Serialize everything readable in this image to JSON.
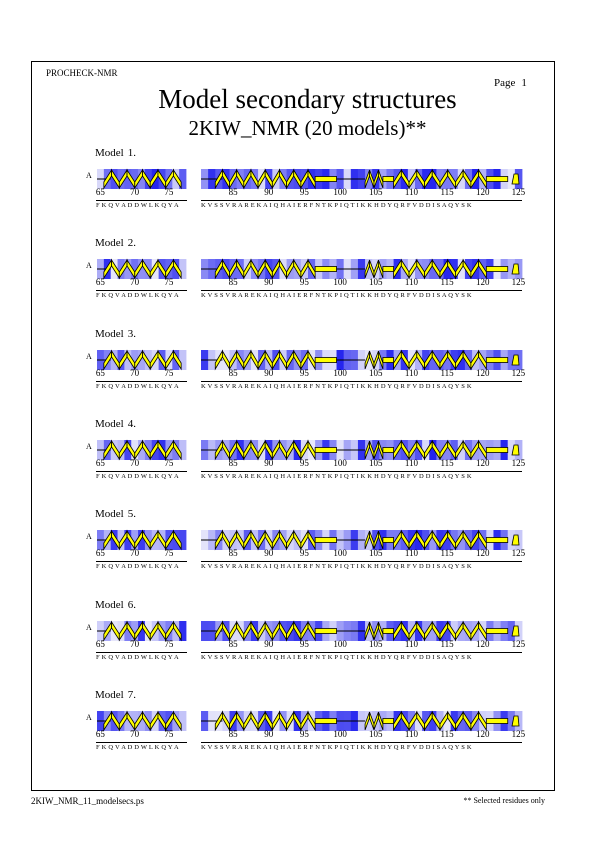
{
  "header": {
    "program": "PROCHECK-NMR",
    "page_label": "Page",
    "page_number": "1",
    "title": "Model secondary structures",
    "subtitle": "2KIW_NMR (20 models)**"
  },
  "footer": {
    "filename": "2KIW_NMR_11_modelsecs.ps",
    "note": "** Selected residues only"
  },
  "colors": {
    "helix_fill": "#ffff00",
    "helix_outline": "#000000",
    "accessibility_dark": "#2020ee",
    "accessibility_light": "#e8e8fa"
  },
  "chain_id": "A",
  "segment1": {
    "residue_start": 65,
    "residue_end": 77,
    "tick_labels": [
      "65",
      "70",
      "75"
    ],
    "sequence": "FKQVADDWLKQYA"
  },
  "segment2": {
    "residue_start": 81,
    "residue_end": 125,
    "tick_labels": [
      "85",
      "90",
      "95",
      "100",
      "105",
      "110",
      "115",
      "120",
      "125"
    ],
    "sequence": "KVSSVRAREKAIQHAIERFNTKPIQTIKKHDYQRFVDDISAQYSK"
  },
  "models": [
    {
      "label": "Model",
      "number": "1."
    },
    {
      "label": "Model",
      "number": "2."
    },
    {
      "label": "Model",
      "number": "3."
    },
    {
      "label": "Model",
      "number": "4."
    },
    {
      "label": "Model",
      "number": "5."
    },
    {
      "label": "Model",
      "number": "6."
    },
    {
      "label": "Model",
      "number": "7."
    }
  ]
}
